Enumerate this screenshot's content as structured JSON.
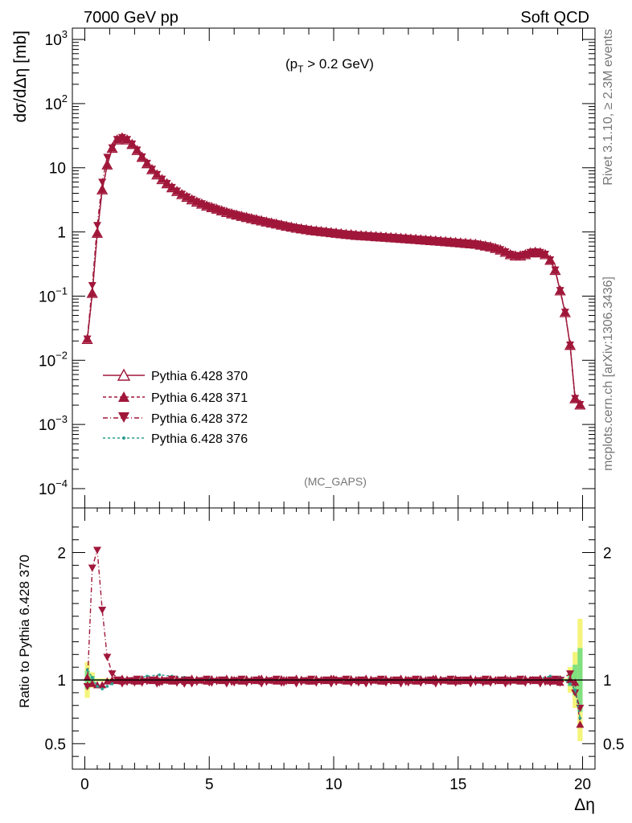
{
  "header": {
    "left": "7000 GeV pp",
    "right": "Soft QCD"
  },
  "side_text": {
    "rivet": "Rivet 3.1.10, ≥ 2.3M events",
    "mcplots": "mcplots.cern.ch [arXiv:1306.3436]"
  },
  "colors": {
    "p370": "#a0173a",
    "p371": "#a0173a",
    "p372": "#a0173a",
    "p376": "#2a9d8f",
    "band_yellow": "#f4f47a",
    "band_green": "#7fe07f"
  },
  "chart_data": [
    {
      "type": "line",
      "title": "",
      "ylabel": "dσ/dΔη [mb]",
      "xlabel": "",
      "annotation": "(p_T > 0.2 GeV)",
      "watermark": "(MC_GAPS)",
      "ylog": true,
      "xlim": [
        -0.5,
        20.5
      ],
      "ylim": [
        5e-05,
        1500
      ],
      "yticks": [
        {
          "v": 0.0001,
          "base": "10",
          "exp": "−4"
        },
        {
          "v": 0.001,
          "base": "10",
          "exp": "−3"
        },
        {
          "v": 0.01,
          "base": "10",
          "exp": "−2"
        },
        {
          "v": 0.1,
          "base": "10",
          "exp": "−1"
        },
        {
          "v": 1,
          "base": "1",
          "exp": ""
        },
        {
          "v": 10,
          "base": "10",
          "exp": ""
        },
        {
          "v": 100,
          "base": "10",
          "exp": "2"
        },
        {
          "v": 1000,
          "base": "10",
          "exp": "3"
        }
      ],
      "legend_position": "middle-left",
      "series": [
        {
          "name": "Pythia 6.428 370",
          "marker": "triangle-up-open",
          "dash": "",
          "color": "#a0173a"
        },
        {
          "name": "Pythia 6.428 371",
          "marker": "triangle-up-filled",
          "dash": "4,3",
          "color": "#a0173a"
        },
        {
          "name": "Pythia 6.428 372",
          "marker": "triangle-down-filled",
          "dash": "6,3,1,3",
          "color": "#a0173a"
        },
        {
          "name": "Pythia 6.428 376",
          "marker": "dot",
          "dash": "3,3",
          "color": "#2a9d8f"
        }
      ],
      "x": [
        0.1,
        0.3,
        0.5,
        0.7,
        0.9,
        1.1,
        1.3,
        1.5,
        1.7,
        1.9,
        2.1,
        2.3,
        2.5,
        2.7,
        2.9,
        3.1,
        3.3,
        3.5,
        3.7,
        3.9,
        4.1,
        4.3,
        4.5,
        4.7,
        4.9,
        5.1,
        5.3,
        5.5,
        5.7,
        5.9,
        6.1,
        6.3,
        6.5,
        6.7,
        6.9,
        7.1,
        7.3,
        7.5,
        7.7,
        7.9,
        8.1,
        8.3,
        8.5,
        8.7,
        8.9,
        9.1,
        9.3,
        9.5,
        9.7,
        9.9,
        10.1,
        10.3,
        10.5,
        10.7,
        10.9,
        11.1,
        11.3,
        11.5,
        11.7,
        11.9,
        12.1,
        12.3,
        12.5,
        12.7,
        12.9,
        13.1,
        13.3,
        13.5,
        13.7,
        13.9,
        14.1,
        14.3,
        14.5,
        14.7,
        14.9,
        15.1,
        15.3,
        15.5,
        15.7,
        15.9,
        16.1,
        16.3,
        16.5,
        16.7,
        16.9,
        17.1,
        17.3,
        17.5,
        17.7,
        17.9,
        18.1,
        18.3,
        18.5,
        18.7,
        18.9,
        19.1,
        19.3,
        19.5,
        19.7,
        19.9
      ],
      "y": [
        0.021,
        0.11,
        0.95,
        4.5,
        11,
        20,
        27,
        29,
        27,
        23,
        18.5,
        14.5,
        11.5,
        9.3,
        7.7,
        6.5,
        5.6,
        4.85,
        4.25,
        3.8,
        3.45,
        3.15,
        2.9,
        2.7,
        2.52,
        2.38,
        2.25,
        2.12,
        2.0,
        1.9,
        1.82,
        1.74,
        1.67,
        1.6,
        1.54,
        1.48,
        1.42,
        1.37,
        1.32,
        1.27,
        1.22,
        1.18,
        1.14,
        1.11,
        1.08,
        1.05,
        1.03,
        1.01,
        0.99,
        0.97,
        0.95,
        0.93,
        0.91,
        0.9,
        0.88,
        0.87,
        0.86,
        0.85,
        0.84,
        0.83,
        0.82,
        0.81,
        0.8,
        0.79,
        0.78,
        0.77,
        0.76,
        0.75,
        0.74,
        0.73,
        0.72,
        0.71,
        0.7,
        0.69,
        0.68,
        0.67,
        0.66,
        0.65,
        0.64,
        0.62,
        0.6,
        0.58,
        0.55,
        0.52,
        0.48,
        0.44,
        0.42,
        0.42,
        0.44,
        0.47,
        0.48,
        0.47,
        0.44,
        0.36,
        0.25,
        0.12,
        0.055,
        0.017,
        0.0025,
        0.002
      ]
    },
    {
      "type": "line",
      "ylabel": "Ratio to Pythia 6.428 370",
      "xlabel": "Δη",
      "xlim": [
        -0.5,
        20.5
      ],
      "ylim": [
        0.3,
        2.35
      ],
      "yticks": [
        {
          "v": 0.5,
          "label": "0.5"
        },
        {
          "v": 1,
          "label": "1"
        },
        {
          "v": 2,
          "label": "2"
        }
      ],
      "xticks": [
        {
          "v": 0,
          "label": "0"
        },
        {
          "v": 5,
          "label": "5"
        },
        {
          "v": 10,
          "label": "10"
        },
        {
          "v": 15,
          "label": "15"
        },
        {
          "v": 20,
          "label": "20"
        }
      ],
      "reference": 1.0,
      "series": [
        {
          "name": "Pythia 6.428 371",
          "points": [
            [
              0.1,
              1.02
            ],
            [
              0.3,
              0.97
            ],
            [
              0.5,
              0.96
            ],
            [
              0.7,
              0.96
            ],
            [
              0.9,
              0.99
            ],
            [
              1.1,
              1.0
            ],
            [
              1.5,
              0.99
            ],
            [
              2.0,
              0.99
            ],
            [
              3.0,
              0.99
            ],
            [
              4.0,
              1.0
            ],
            [
              5.0,
              0.99
            ],
            [
              6.0,
              1.0
            ],
            [
              7.0,
              1.01
            ],
            [
              8.0,
              1.0
            ],
            [
              9.0,
              0.99
            ],
            [
              10.0,
              1.01
            ],
            [
              11.0,
              1.0
            ],
            [
              12.0,
              0.99
            ],
            [
              13.0,
              1.0
            ],
            [
              14.0,
              1.01
            ],
            [
              15.0,
              0.99
            ],
            [
              16.0,
              1.0
            ],
            [
              17.0,
              1.0
            ],
            [
              18.0,
              1.0
            ],
            [
              18.7,
              0.99
            ],
            [
              19.1,
              0.98
            ],
            [
              19.5,
              1.0
            ],
            [
              19.7,
              0.98
            ],
            [
              19.9,
              0.65
            ]
          ]
        },
        {
          "name": "Pythia 6.428 372",
          "points": [
            [
              0.1,
              0.95
            ],
            [
              0.3,
              1.88
            ],
            [
              0.5,
              2.02
            ],
            [
              0.7,
              1.55
            ],
            [
              0.9,
              1.18
            ],
            [
              1.1,
              1.05
            ],
            [
              1.5,
              0.99
            ],
            [
              2.0,
              0.98
            ],
            [
              3.0,
              0.98
            ],
            [
              4.0,
              0.97
            ],
            [
              5.0,
              0.98
            ],
            [
              6.0,
              0.98
            ],
            [
              7.0,
              0.99
            ],
            [
              8.0,
              0.98
            ],
            [
              9.0,
              0.99
            ],
            [
              10.0,
              1.0
            ],
            [
              11.0,
              0.98
            ],
            [
              12.0,
              0.99
            ],
            [
              13.0,
              0.98
            ],
            [
              14.0,
              0.99
            ],
            [
              15.0,
              1.0
            ],
            [
              16.0,
              0.98
            ],
            [
              17.0,
              0.99
            ],
            [
              18.0,
              1.0
            ],
            [
              18.7,
              0.98
            ],
            [
              19.1,
              1.0
            ],
            [
              19.5,
              1.05
            ],
            [
              19.7,
              0.9
            ],
            [
              19.9,
              0.78
            ]
          ]
        },
        {
          "name": "Pythia 6.428 376",
          "points": [
            [
              0.1,
              1.08
            ],
            [
              0.3,
              1.02
            ],
            [
              0.5,
              0.95
            ],
            [
              0.7,
              0.93
            ],
            [
              0.9,
              0.95
            ],
            [
              1.1,
              0.97
            ],
            [
              1.5,
              0.99
            ],
            [
              2.0,
              1.01
            ],
            [
              2.5,
              1.03
            ],
            [
              3.0,
              1.04
            ],
            [
              3.5,
              1.03
            ],
            [
              4.0,
              1.02
            ],
            [
              5.0,
              1.01
            ],
            [
              6.0,
              1.0
            ],
            [
              7.0,
              1.0
            ],
            [
              8.0,
              0.99
            ],
            [
              9.0,
              1.0
            ],
            [
              10.0,
              1.0
            ],
            [
              11.0,
              0.99
            ],
            [
              12.0,
              1.0
            ],
            [
              13.0,
              1.0
            ],
            [
              14.0,
              0.99
            ],
            [
              15.0,
              1.0
            ],
            [
              16.0,
              1.0
            ],
            [
              17.0,
              0.99
            ],
            [
              18.0,
              1.0
            ],
            [
              18.7,
              1.03
            ],
            [
              19.1,
              1.02
            ],
            [
              19.5,
              0.97
            ],
            [
              19.7,
              0.92
            ],
            [
              19.9,
              0.7
            ]
          ]
        }
      ]
    }
  ]
}
